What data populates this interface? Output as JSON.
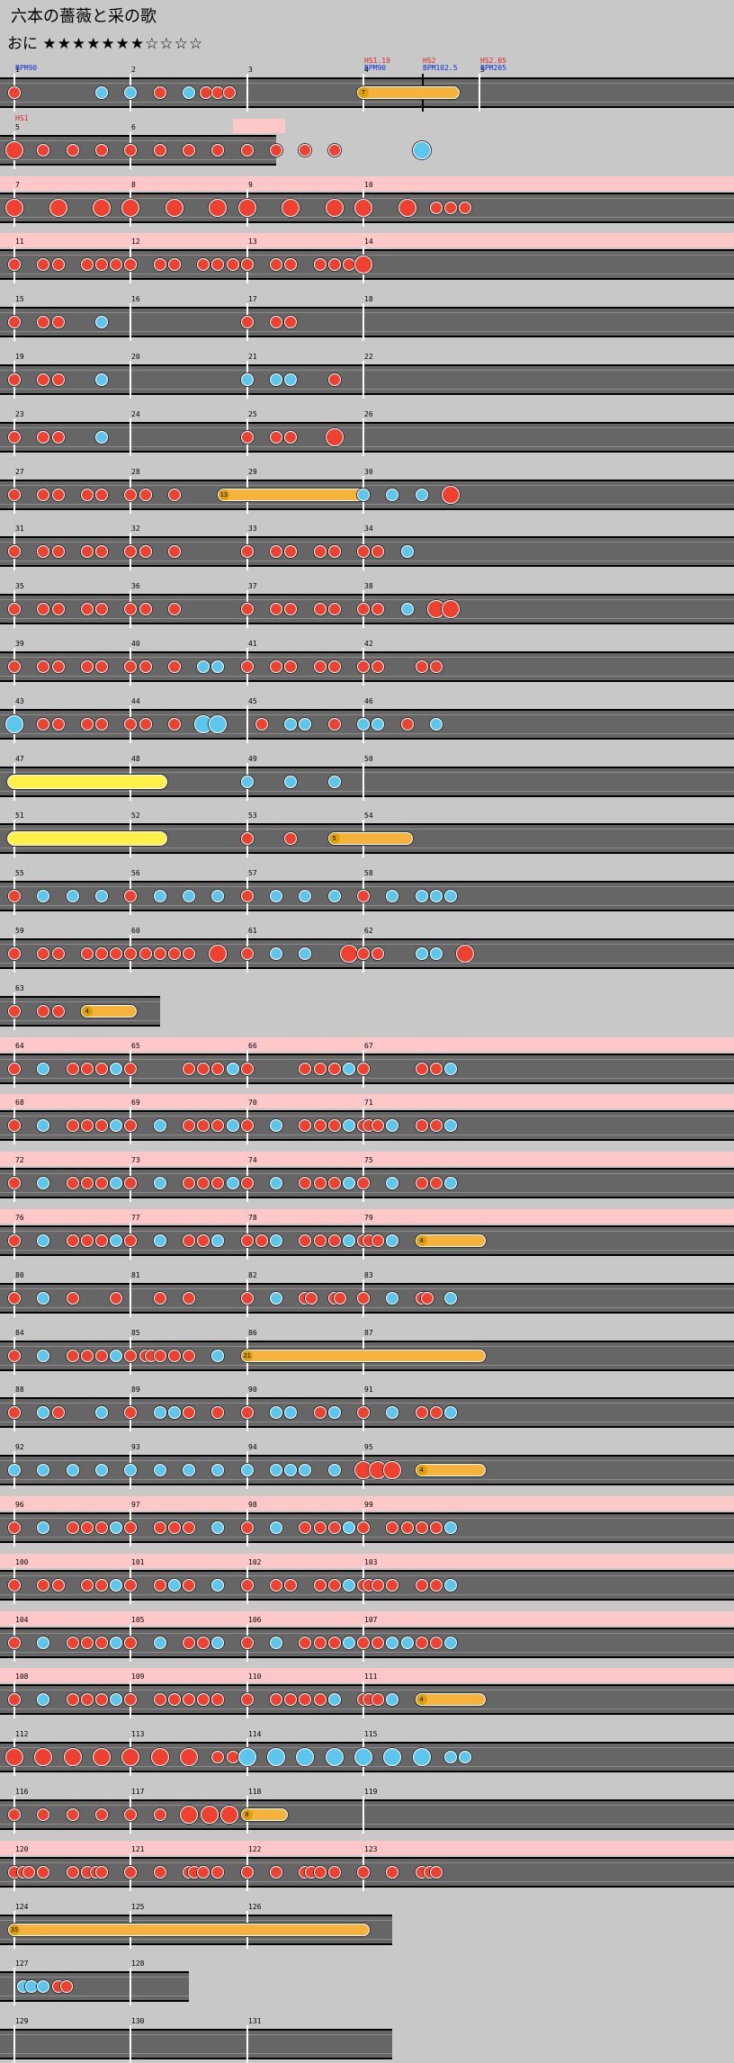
{
  "song": {
    "title": "六本の薔薇と采の歌",
    "difficulty_label": "おに",
    "stars_filled": "★★★★★★★",
    "stars_empty": "☆☆☆☆",
    "level": 7,
    "max_level": 11
  },
  "colors": {
    "don": "#ef4030",
    "ka": "#5cc7ee",
    "drumroll": "#f7b23c",
    "big_drumroll": "#fff04a",
    "gogo": "#ffc8c8",
    "lane": "#666666",
    "background": "#c8c8c8",
    "bpm_text": "#1030d0",
    "hs_text": "#e02020"
  },
  "events": [
    {
      "measure": 1,
      "text": "BPM90",
      "color": "bpm"
    },
    {
      "measure": 4,
      "text": "HS1.19\nBPM90",
      "color": "mixed"
    },
    {
      "measure": 4,
      "beat": 2,
      "text": "HS2\nBPM102.5",
      "color": "mixed"
    },
    {
      "measure": 5,
      "text": "HS2.05\nBPM205",
      "color": "mixed"
    },
    {
      "measure": 5,
      "row_only": 1,
      "text": "HS1",
      "color": "hs"
    }
  ],
  "rows": [
    {
      "measures": [
        1,
        2,
        3,
        4,
        5
      ],
      "gogo": false,
      "notes": "0:d|3:k|4:k|5:d|6:k|6.6:d|7:d|7.4:d",
      "rolls": [
        {
          "s": 12,
          "e": 15.1,
          "t": "r",
          "c": "7"
        }
      ]
    },
    {
      "measures": [
        5,
        6
      ],
      "len": 9,
      "gogo": false,
      "gogoSeg": [
        7.5,
        9
      ],
      "notes": "0:D|1:d|2:d|3:d|4:d|5:d|6:d|7:d|8:d|9:d|10:d|11:d|14:K"
    },
    {
      "measures": [
        7,
        8,
        9,
        10
      ],
      "gogo": true,
      "notes": "0:D|1.5:D|3:D|4:D|5.5:D|7:D|8:D|9.5:D|11:D|12:D|13.5:D|14.5:d|15:d|15.5:d"
    },
    {
      "measures": [
        11,
        12,
        13,
        14
      ],
      "gogo": true,
      "notes": "0:d|1:d|1.5:d|2.5:d|3:d|3.5:d|4:d|5:d|5.5:d|6.5:d|7:d|7.5:d|8:d|9:d|9.5:d|10.5:d|11:d|11.5:d|12:D"
    },
    {
      "measures": [
        15,
        16,
        17,
        18
      ],
      "gogo": false,
      "notes": "0:d|1:d|1.5:d|3:k|8:d|9:d|9.5:d"
    },
    {
      "measures": [
        19,
        20,
        21,
        22
      ],
      "gogo": false,
      "notes": "0:d|1:d|1.5:d|3:k|8:k|9:k|9.5:k|11:d"
    },
    {
      "measures": [
        23,
        24,
        25,
        26
      ],
      "gogo": false,
      "notes": "0:d|1:d|1.5:d|3:k|8:d|9:d|9.5:d|11:D"
    },
    {
      "measures": [
        27,
        28,
        29,
        30
      ],
      "gogo": false,
      "notes": "0:d|1:d|1.5:d|2.5:d|3:d|4:d|4.5:d|5.5:d|12:k|13:k|14:k|15:D",
      "rolls": [
        {
          "s": 7.2,
          "e": 12,
          "t": "r",
          "c": "13"
        }
      ]
    },
    {
      "measures": [
        31,
        32,
        33,
        34
      ],
      "gogo": false,
      "notes": "0:d|1:d|1.5:d|2.5:d|3:d|4:d|4.5:d|5.5:d|8:d|9:d|9.5:d|10.5:d|11:d|12:d|12.5:d|13.5:k"
    },
    {
      "measures": [
        35,
        36,
        37,
        38
      ],
      "gogo": false,
      "notes": "0:d|1:d|1.5:d|2.5:d|3:d|4:d|4.5:d|5.5:d|8:d|9:d|9.5:d|10.5:d|11:d|12:d|12.5:d|13.5:k|14.5:D|15:D"
    },
    {
      "measures": [
        39,
        40,
        41,
        42
      ],
      "gogo": false,
      "notes": "0:d|1:d|1.5:d|2.5:d|3:d|4:d|4.5:d|5.5:d|6.5:k|7:k|8:d|9:d|9.5:d|10.5:d|11:d|12:d|12.5:d|14:d|14.5:d"
    },
    {
      "measures": [
        43,
        44,
        45,
        46
      ],
      "gogo": false,
      "notes": "0:K|1:d|1.5:d|2.5:d|3:d|4:d|4.5:d|5.5:d|6.5:K|7:K|8.5:d|9.5:k|10:k|11:d|12:k|12.5:k|13.5:d|14.5:k"
    },
    {
      "measures": [
        47,
        48,
        49,
        50
      ],
      "gogo": false,
      "notes": "8:k|9.5:k|11:k",
      "rolls": [
        {
          "s": 0,
          "e": 5,
          "t": "b"
        }
      ]
    },
    {
      "measures": [
        51,
        52,
        53,
        54
      ],
      "gogo": false,
      "notes": "8:d|9.5:d",
      "rolls": [
        {
          "s": 0,
          "e": 5,
          "t": "b"
        },
        {
          "s": 11,
          "e": 13.5,
          "t": "r",
          "c": "5"
        }
      ]
    },
    {
      "measures": [
        55,
        56,
        57,
        58
      ],
      "gogo": false,
      "notes": "0:d|1:k|2:k|3:k|4:d|5:k|6:k|7:k|8:d|9:k|10:k|11:k|12:d|13:k|14:k|14.5:k|15:k"
    },
    {
      "measures": [
        59,
        60,
        61,
        62
      ],
      "gogo": false,
      "notes": "0:d|1:d|1.5:d|2.5:d|3:d|3.5:d|4:d|4.5:d|5:d|5.5:d|6:d|7:D|8:d|9:k|10:k|11.5:D|12:d|12.5:d|14:k|14.5:k|15.5:D"
    },
    {
      "measures": [
        63
      ],
      "len": 5,
      "gogo": false,
      "notes": "0:d|1:d|1.5:d",
      "rolls": [
        {
          "s": 2.5,
          "e": 4,
          "t": "r",
          "c": "4"
        }
      ]
    },
    {
      "measures": [
        64,
        65,
        66,
        67
      ],
      "gogo": true,
      "notes": "0:d|1:k|2:d|2.5:d|3:d|3.5:k|4:d|6:d|6.5:d|7:d|7.5:k|8:d|10:d|10.5:d|11:d|11.5:k|12:d|14:d|14.5:d|15:k"
    },
    {
      "measures": [
        68,
        69,
        70,
        71
      ],
      "gogo": true,
      "notes": "0:d|1:k|2:d|2.5:d|3:d|3.5:k|4:d|5:k|6:d|6.5:d|7:d|7.5:k|8:d|9:k|10:d|10.5:d|11:d|11.5:k|12:d|12.2:d|12.5:d|13:k|14:d|14.5:d|15:k"
    },
    {
      "measures": [
        72,
        73,
        74,
        75
      ],
      "gogo": true,
      "notes": "0:d|1:k|2:d|2.5:d|3:d|3.5:k|4:d|5:k|6:d|6.5:d|7:d|7.5:k|8:d|9:k|10:d|10.5:d|11:d|11.5:k|12:d|13:k|14:d|14.5:d|15:k"
    },
    {
      "measures": [
        76,
        77,
        78,
        79
      ],
      "gogo": true,
      "notes": "0:d|1:k|2:d|2.5:d|3:d|3.5:k|4:d|5:k|6:d|6.5:d|7:k|8:d|8.5:d|9:k|10:d|10.5:d|11:d|11.5:k|12:d|12.2:d|12.5:d|13:k",
      "rolls": [
        {
          "s": 14,
          "e": 16,
          "t": "r",
          "c": "4"
        }
      ]
    },
    {
      "measures": [
        80,
        81,
        82,
        83
      ],
      "gogo": false,
      "notes": "0:d|1:k|2:d|3.5:d|5:d|6:d|8:d|9:k|10:d|10.2:d|11:d|11.2:d|12:d|13:k|14:d|14.2:d|15:k"
    },
    {
      "measures": [
        84,
        85,
        86,
        87
      ],
      "gogo": false,
      "notes": "0:d|1:k|2:d|2.5:d|3:d|3.5:k|4:d|4.5:d|4.7:d|5:d|5.5:d|6:d|7:k",
      "rolls": [
        {
          "s": 8,
          "e": 16,
          "t": "r",
          "c": "21"
        }
      ]
    },
    {
      "measures": [
        88,
        89,
        90,
        91
      ],
      "gogo": false,
      "notes": "0:d|1:k|1.5:d|3:k|4:d|5:k|5.5:k|6:d|7:d|8:d|9:k|9.5:k|10.5:d|11:k|12:d|13:k|14:d|14.5:d|15:k"
    },
    {
      "measures": [
        92,
        93,
        94,
        95
      ],
      "gogo": false,
      "notes": "0:k|1:k|2:k|3:k|4:k|5:k|6:k|7:k|8:k|9:k|9.5:k|10:k|11:k|12:D|12.5:D|13:D",
      "rolls": [
        {
          "s": 14,
          "e": 16,
          "t": "r",
          "c": "4"
        }
      ]
    },
    {
      "measures": [
        96,
        97,
        98,
        99
      ],
      "gogo": true,
      "notes": "0:d|1:k|2:d|2.5:d|3:d|3.5:k|4:d|5:d|5.5:d|6:d|7:k|8:d|9:k|10:d|10.5:d|11:d|11.5:k|12:d|13:d|13.5:d|14:d|14.5:d|15:k"
    },
    {
      "measures": [
        100,
        101,
        102,
        103
      ],
      "gogo": true,
      "notes": "0:d|1:d|1.5:d|2.5:d|3:d|3.5:k|4:d|5:d|5.5:k|6:d|7:k|8:d|9:d|9.5:d|10.5:d|11:d|11.5:k|12:d|12.2:d|12.5:d|13:d|14:d|14.5:d|15:k"
    },
    {
      "measures": [
        104,
        105,
        106,
        107
      ],
      "gogo": true,
      "notes": "0:d|1:k|2:d|2.5:d|3:d|3.5:k|4:d|5:k|6:d|6.5:d|7:k|8:d|9:k|10:d|10.5:d|11:d|11.5:k|12:d|12.5:d|13:k|13.5:k|14:d|14.5:d|15:k"
    },
    {
      "measures": [
        108,
        109,
        110,
        111
      ],
      "gogo": true,
      "notes": "0:d|1:k|2:d|2.5:d|3:d|3.5:k|4:d|5:d|5.5:d|6:d|6.5:d|7:d|8:d|9:d|9.5:d|10:d|10.5:d|11:k|12:d|12.2:d|12.5:d|13:k",
      "rolls": [
        {
          "s": 14,
          "e": 16,
          "t": "r",
          "c": "4"
        }
      ]
    },
    {
      "measures": [
        112,
        113,
        114,
        115
      ],
      "gogo": false,
      "notes": "0:D|1:D|2:D|3:D|4:D|5:D|6:D|7:d|7.5:d|8:K|9:K|10:K|11:K|12:K|13:K|14:K|15:k|15.5:k"
    },
    {
      "measures": [
        116,
        117,
        118,
        119
      ],
      "gogo": false,
      "notes": "0:d|1:d|2:d|3:d|4:d|5:d|6:D|6.7:D|7.4:D",
      "rolls": [
        {
          "s": 8,
          "e": 9.2,
          "t": "r",
          "c": "8"
        }
      ]
    },
    {
      "measures": [
        120,
        121,
        122,
        123
      ],
      "gogo": true,
      "notes": "0:d|0.3:d|0.5:d|1:d|2:d|2.5:d|2.8:d|3:d|4:d|5:d|6:d|6.2:d|6.5:d|7:d|8:d|9:d|10:d|10.2:d|10.5:d|11:d|12:d|13:d|14:d|14.3:d|14.5:d"
    },
    {
      "measures": [
        124,
        125,
        126
      ],
      "len": 13,
      "gogo": false,
      "notes": "",
      "rolls": [
        {
          "s": 0,
          "e": 12,
          "t": "r",
          "c": "35"
        }
      ]
    },
    {
      "measures": [
        127,
        128
      ],
      "len": 6,
      "gogo": false,
      "notes": "0.3:k|0.6:k|1:k|1.5:d|1.8:d"
    },
    {
      "measures": [
        129,
        130,
        131
      ],
      "len": 13,
      "gogo": false,
      "notes": ""
    }
  ]
}
